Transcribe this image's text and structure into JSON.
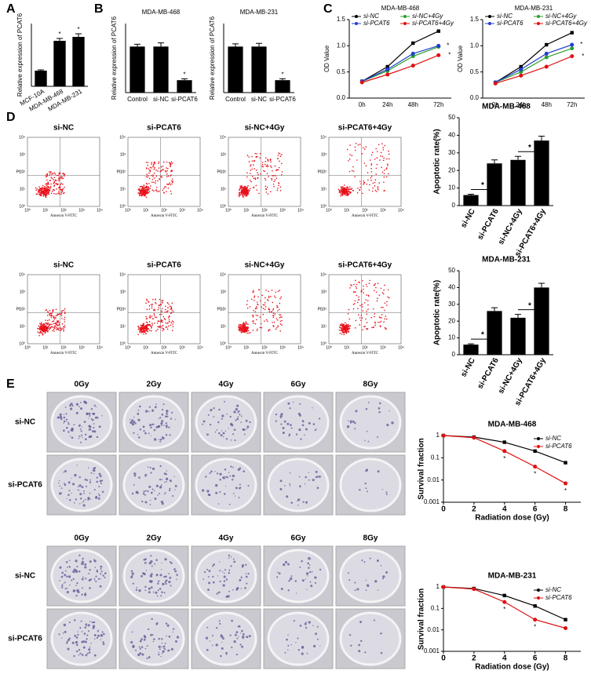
{
  "panel_labels": [
    "A",
    "B",
    "C",
    "D",
    "E"
  ],
  "chart_data": [
    {
      "type": "bar",
      "ylabel": "Relative expression of PCAT6",
      "categories": [
        "MCF-10A",
        "MDA-MB-468",
        "MDA-MB-231"
      ],
      "values": [
        1.0,
        2.9,
        3.15
      ],
      "errors": [
        0.05,
        0.15,
        0.2
      ],
      "color": "#000000",
      "ylim": [
        0,
        4
      ],
      "annotations": [
        null,
        "*",
        "*"
      ]
    },
    {
      "type": "bar",
      "title": "MDA-MB-468",
      "ylabel": "Relative expression of PCAT6",
      "categories": [
        "Control",
        "si-NC",
        "si-PCAT6"
      ],
      "values": [
        1.0,
        1.0,
        0.27
      ],
      "errors": [
        0.05,
        0.08,
        0.03
      ],
      "color": "#000000",
      "ylim": [
        0,
        1.5
      ],
      "annotations": [
        null,
        null,
        "*"
      ]
    },
    {
      "type": "bar",
      "title": "MDA-MB-231",
      "ylabel": "Relative expression of PCAT6",
      "categories": [
        "Control",
        "si-NC",
        "si-PCAT6"
      ],
      "values": [
        1.0,
        1.0,
        0.27
      ],
      "errors": [
        0.06,
        0.07,
        0.03
      ],
      "color": "#000000",
      "ylim": [
        0,
        1.5
      ],
      "annotations": [
        null,
        null,
        "*"
      ]
    },
    {
      "type": "line",
      "title": "MDA-MB-468",
      "ylabel": "OD Value",
      "categories": [
        "0h",
        "24h",
        "48h",
        "72h"
      ],
      "ylim": [
        0,
        1.5
      ],
      "yticks": [
        {
          "value": 0,
          "label": "0.0"
        },
        {
          "value": 0.5,
          "label": "0.5"
        },
        {
          "value": 1.0,
          "label": "1.0"
        },
        {
          "value": 1.5,
          "label": "1.5"
        }
      ],
      "series": [
        {
          "name": "si-NC",
          "color": "#000000",
          "values": [
            0.32,
            0.6,
            1.05,
            1.28
          ]
        },
        {
          "name": "si-NC+4Gy",
          "color": "#2ca02c",
          "values": [
            0.32,
            0.52,
            0.8,
            0.98
          ]
        },
        {
          "name": "si-PCAT6",
          "color": "#1f3fd0",
          "values": [
            0.32,
            0.55,
            0.85,
            1.0
          ],
          "annotations": [
            null,
            null,
            null,
            "*"
          ]
        },
        {
          "name": "si-PCAT6+4Gy",
          "color": "#e01010",
          "values": [
            0.3,
            0.45,
            0.62,
            0.82
          ],
          "annotations": [
            null,
            null,
            null,
            "*"
          ]
        }
      ]
    },
    {
      "type": "line",
      "title": "MDA-MB-231",
      "ylabel": "OD Value",
      "categories": [
        "0h",
        "24h",
        "48h",
        "72h"
      ],
      "ylim": [
        0,
        1.5
      ],
      "yticks": [
        {
          "value": 0,
          "label": "0.0"
        },
        {
          "value": 0.5,
          "label": "0.5"
        },
        {
          "value": 1.0,
          "label": "1.0"
        },
        {
          "value": 1.5,
          "label": "1.5"
        }
      ],
      "series": [
        {
          "name": "si-NC",
          "color": "#000000",
          "values": [
            0.3,
            0.6,
            1.02,
            1.25
          ]
        },
        {
          "name": "si-NC+4Gy",
          "color": "#2ca02c",
          "values": [
            0.3,
            0.5,
            0.78,
            0.95
          ]
        },
        {
          "name": "si-PCAT6",
          "color": "#1f3fd0",
          "values": [
            0.3,
            0.55,
            0.85,
            1.02
          ],
          "annotations": [
            null,
            null,
            null,
            "*"
          ]
        },
        {
          "name": "si-PCAT6+4Gy",
          "color": "#e01010",
          "values": [
            0.28,
            0.43,
            0.6,
            0.8
          ],
          "annotations": [
            null,
            null,
            null,
            "*"
          ]
        }
      ]
    },
    {
      "type": "bar",
      "title": "MDA-MB-468",
      "ylabel": "Apoptotic rate(%)",
      "categories": [
        "si-NC",
        "si-PCAT6",
        "si-NC+4Gy",
        "si-PCAT6+4Gy"
      ],
      "values": [
        6,
        24,
        26,
        37
      ],
      "errors": [
        0.5,
        2,
        2,
        2.5
      ],
      "color": "#000000",
      "ylim": [
        0,
        50
      ],
      "yticks": [
        0,
        10,
        20,
        30,
        40,
        50
      ],
      "annotations": [
        null,
        "*",
        null,
        "*"
      ],
      "comparison_brackets": true
    },
    {
      "type": "bar",
      "title": "MDA-MB-231",
      "ylabel": "Apoptotic rate(%)",
      "categories": [
        "si-NC",
        "si-PCAT6",
        "si-NC+4Gy",
        "si-PCAT6+4Gy"
      ],
      "values": [
        6,
        26,
        22,
        40
      ],
      "errors": [
        0.5,
        2,
        2,
        2.5
      ],
      "color": "#000000",
      "ylim": [
        0,
        50
      ],
      "yticks": [
        0,
        10,
        20,
        30,
        40,
        50
      ],
      "annotations": [
        null,
        "*",
        null,
        "*"
      ],
      "comparison_brackets": true
    },
    {
      "type": "line",
      "title": "MDA-MB-468",
      "xlabel": "Radiation dose (Gy)",
      "ylabel": "Survival fraction",
      "x": [
        0,
        2,
        4,
        6,
        8
      ],
      "xlim": [
        0,
        9
      ],
      "xticks": [
        0,
        2,
        4,
        6,
        8
      ],
      "ylim": [
        0.001,
        1
      ],
      "yticks": [
        0.001,
        0.01,
        0.1,
        1
      ],
      "log_y": true,
      "series": [
        {
          "name": "si-NC",
          "color": "#000000",
          "values": [
            1,
            0.85,
            0.5,
            0.2,
            0.06
          ]
        },
        {
          "name": "si-PCAT6",
          "color": "#e01010",
          "values": [
            1,
            0.8,
            0.2,
            0.04,
            0.007
          ],
          "annotations": [
            null,
            null,
            "*",
            "*",
            "*"
          ]
        }
      ]
    },
    {
      "type": "line",
      "title": "MDA-MB-231",
      "xlabel": "Radiation dose (Gy)",
      "ylabel": "Survival fraction",
      "x": [
        0,
        2,
        4,
        6,
        8
      ],
      "xlim": [
        0,
        9
      ],
      "xticks": [
        0,
        2,
        4,
        6,
        8
      ],
      "ylim": [
        0.001,
        1
      ],
      "yticks": [
        0.001,
        0.01,
        0.1,
        1
      ],
      "log_y": true,
      "series": [
        {
          "name": "si-NC",
          "color": "#000000",
          "values": [
            1,
            0.85,
            0.4,
            0.13,
            0.03
          ]
        },
        {
          "name": "si-PCAT6",
          "color": "#e01010",
          "values": [
            1,
            0.8,
            0.2,
            0.03,
            0.012
          ],
          "annotations": [
            null,
            null,
            "*",
            "*",
            null
          ]
        }
      ]
    }
  ],
  "flow_cytometry": {
    "samples": [
      "si-NC",
      "si-PCAT6",
      "si-NC+4Gy",
      "si-PCAT6+4Gy"
    ],
    "x_axis": "Annexin V-FITC",
    "y_axis": "PI",
    "ticks": [
      "10⁰",
      "10¹",
      "10²",
      "10³",
      "10⁴"
    ]
  },
  "colony_assay": {
    "doses": [
      "0Gy",
      "2Gy",
      "4Gy",
      "6Gy",
      "8Gy"
    ],
    "groups": [
      "si-NC",
      "si-PCAT6"
    ]
  }
}
